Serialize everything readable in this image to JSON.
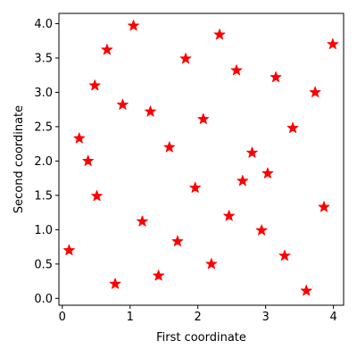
{
  "chart_data": {
    "type": "scatter",
    "title": "",
    "xlabel": "First coordinate",
    "ylabel": "Second coordinate",
    "xlim": [
      -0.05,
      4.15
    ],
    "ylim": [
      -0.1,
      4.15
    ],
    "xticks": [
      0,
      1,
      2,
      3,
      4
    ],
    "xtick_labels": [
      "0",
      "1",
      "2",
      "3",
      "4"
    ],
    "yticks": [
      0.0,
      0.5,
      1.0,
      1.5,
      2.0,
      2.5,
      3.0,
      3.5,
      4.0
    ],
    "ytick_labels": [
      "0.0",
      "0.5",
      "1.0",
      "1.5",
      "2.0",
      "2.5",
      "3.0",
      "3.5",
      "4.0"
    ],
    "grid": false,
    "marker": "star",
    "marker_color": "#ff0000",
    "series": [
      {
        "points": [
          [
            0.1,
            0.7
          ],
          [
            0.25,
            2.33
          ],
          [
            0.38,
            2.0
          ],
          [
            0.48,
            3.1
          ],
          [
            0.51,
            1.49
          ],
          [
            0.66,
            3.62
          ],
          [
            0.78,
            0.21
          ],
          [
            0.89,
            2.82
          ],
          [
            1.05,
            3.97
          ],
          [
            1.18,
            1.12
          ],
          [
            1.3,
            2.72
          ],
          [
            1.42,
            0.33
          ],
          [
            1.58,
            2.2
          ],
          [
            1.7,
            0.83
          ],
          [
            1.82,
            3.49
          ],
          [
            1.96,
            1.61
          ],
          [
            2.08,
            2.61
          ],
          [
            2.2,
            0.5
          ],
          [
            2.32,
            3.84
          ],
          [
            2.46,
            1.2
          ],
          [
            2.57,
            3.32
          ],
          [
            2.66,
            1.71
          ],
          [
            2.8,
            2.12
          ],
          [
            2.94,
            0.99
          ],
          [
            3.03,
            1.82
          ],
          [
            3.15,
            3.22
          ],
          [
            3.28,
            0.62
          ],
          [
            3.4,
            2.48
          ],
          [
            3.6,
            0.11
          ],
          [
            3.73,
            3.0
          ],
          [
            3.86,
            1.33
          ],
          [
            3.99,
            3.7
          ]
        ]
      }
    ]
  }
}
